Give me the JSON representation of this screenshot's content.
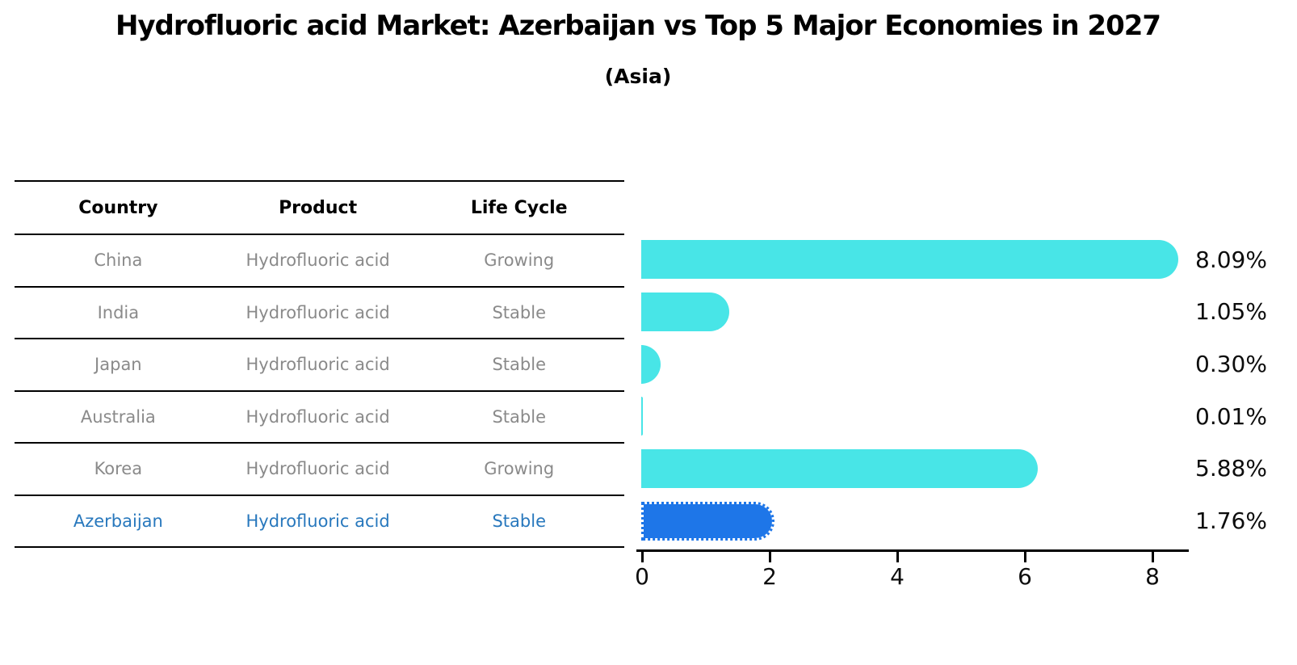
{
  "title": "Hydrofluoric acid Market: Azerbaijan vs Top 5 Major Economies in 2027",
  "subtitle": "(Asia)",
  "colors": {
    "bar_default": "#48e5e7",
    "bar_highlight": "#1e76e8",
    "highlight_text": "#2878bd",
    "row_text": "#8a8a8a",
    "axis": "#000000",
    "header_text": "#000000"
  },
  "table": {
    "headers": {
      "country": "Country",
      "product": "Product",
      "life_cycle": "Life Cycle"
    },
    "rows": [
      {
        "country": "China",
        "product": "Hydrofluoric acid",
        "life_cycle": "Growing",
        "highlight": false
      },
      {
        "country": "India",
        "product": "Hydrofluoric acid",
        "life_cycle": "Stable",
        "highlight": false
      },
      {
        "country": "Japan",
        "product": "Hydrofluoric acid",
        "life_cycle": "Stable",
        "highlight": false
      },
      {
        "country": "Australia",
        "product": "Hydrofluoric acid",
        "life_cycle": "Stable",
        "highlight": false
      },
      {
        "country": "Korea",
        "product": "Hydrofluoric acid",
        "life_cycle": "Growing",
        "highlight": false
      },
      {
        "country": "Azerbaijan",
        "product": "Hydrofluoric acid",
        "life_cycle": "Stable",
        "highlight": true
      }
    ]
  },
  "chart_data": {
    "type": "bar",
    "orientation": "horizontal",
    "title": "Hydrofluoric acid Market: Azerbaijan vs Top 5 Major Economies in 2027",
    "subtitle": "(Asia)",
    "categories": [
      "China",
      "India",
      "Japan",
      "Australia",
      "Korea",
      "Azerbaijan"
    ],
    "values": [
      8.09,
      1.05,
      0.3,
      0.01,
      5.88,
      1.76
    ],
    "labels": [
      "8.09%",
      "1.05%",
      "0.30%",
      "0.01%",
      "5.88%",
      "1.76%"
    ],
    "xlabel": "",
    "ylabel": "",
    "xlim": [
      0,
      8.5
    ],
    "xticks": [
      0,
      2,
      4,
      6,
      8
    ],
    "grid": false,
    "legend": "none",
    "highlight_index": 5,
    "bar_color": "#48e5e7",
    "highlight_bar_color": "#1e76e8",
    "highlight_bar_style": "dotted-border"
  }
}
